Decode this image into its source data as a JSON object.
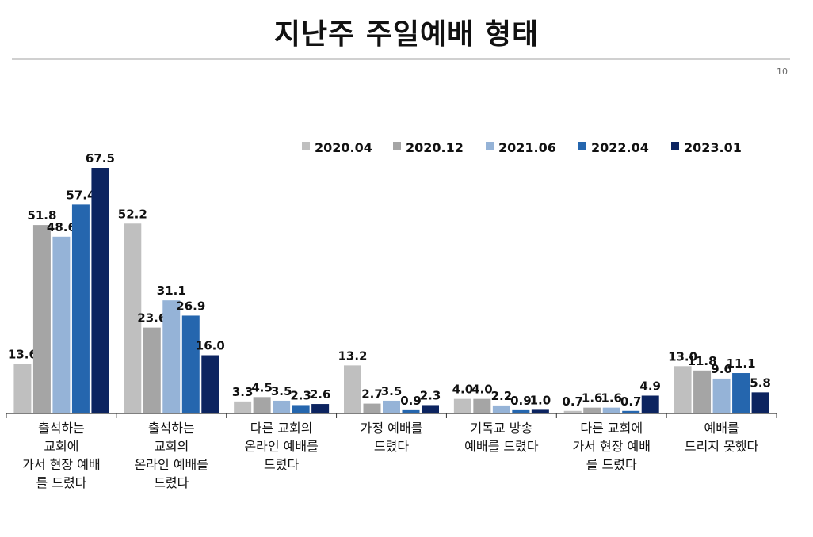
{
  "title": "지난주 주일예배 형태",
  "page_number": "10",
  "chart_data": {
    "type": "bar",
    "title": "",
    "xlabel": "",
    "ylabel": "",
    "ylim": [
      0,
      70
    ],
    "grid": false,
    "legend_position": "top-right",
    "categories": [
      [
        "출석하는",
        "교회에",
        "가서 현장 예배",
        "를 드렸다"
      ],
      [
        "출석하는",
        "교회의",
        "온라인 예배를",
        "드렸다"
      ],
      [
        "다른 교회의",
        "온라인 예배를",
        "드렸다"
      ],
      [
        "가정 예배를",
        "드렸다"
      ],
      [
        "기독교 방송",
        "예배를 드렸다"
      ],
      [
        "다른 교회에",
        "가서 현장 예배",
        "를 드렸다"
      ],
      [
        "예배를",
        "드리지 못했다"
      ]
    ],
    "series": [
      {
        "name": "2020.04",
        "color": "#bfbfbf",
        "values": [
          13.6,
          52.2,
          3.3,
          13.2,
          4.0,
          0.7,
          13.0
        ]
      },
      {
        "name": "2020.12",
        "color": "#a5a5a5",
        "values": [
          51.8,
          23.6,
          4.5,
          2.7,
          4.0,
          1.6,
          11.8
        ]
      },
      {
        "name": "2021.06",
        "color": "#95b3d7",
        "values": [
          48.6,
          31.1,
          3.5,
          3.5,
          2.2,
          1.6,
          9.6
        ]
      },
      {
        "name": "2022.04",
        "color": "#2566ae",
        "values": [
          57.4,
          26.9,
          2.3,
          0.9,
          0.9,
          0.7,
          11.1
        ]
      },
      {
        "name": "2023.01",
        "color": "#0c2460",
        "values": [
          67.5,
          16.0,
          2.6,
          2.3,
          1.0,
          4.9,
          5.8
        ]
      }
    ]
  }
}
